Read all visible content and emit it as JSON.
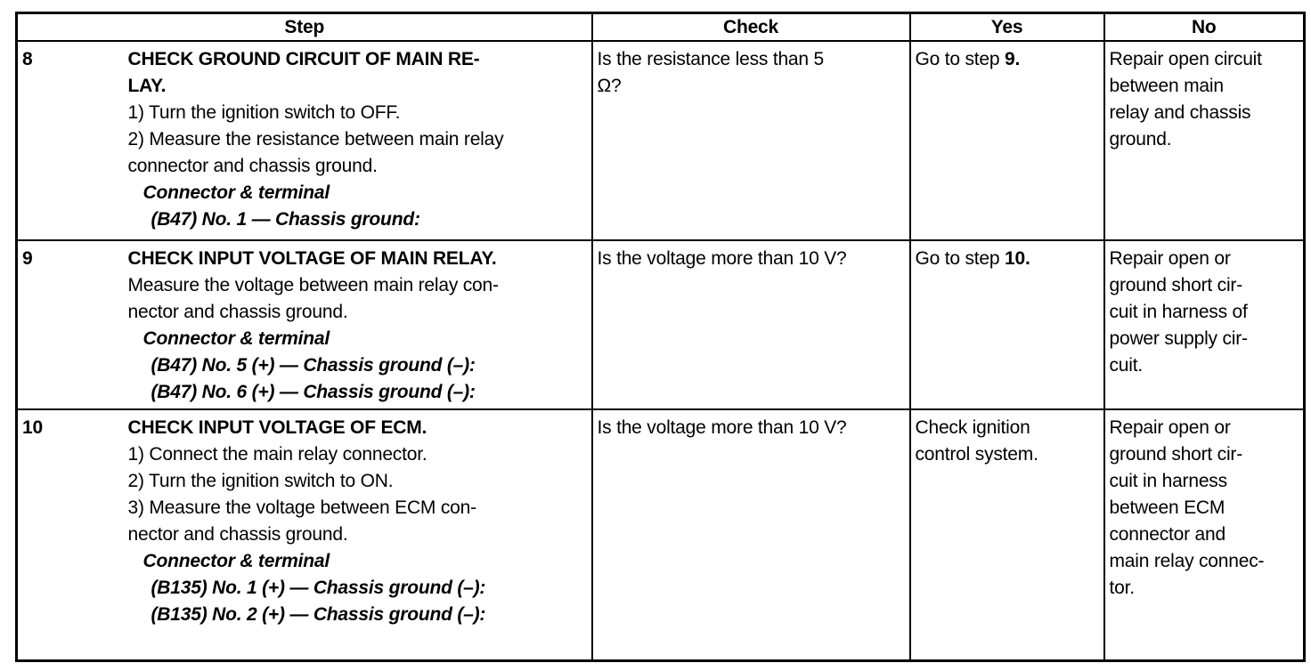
{
  "headers": {
    "step": "Step",
    "check": "Check",
    "yes": "Yes",
    "no": "No"
  },
  "rows": [
    {
      "num": "8",
      "step": [
        {
          "t": "CHECK GROUND CIRCUIT OF MAIN RE-",
          "s": "b"
        },
        {
          "t": "LAY.",
          "s": "b"
        },
        {
          "t": "1)  Turn the ignition switch to OFF.",
          "s": "n"
        },
        {
          "t": "2)  Measure the resistance between main relay",
          "s": "n"
        },
        {
          "t": "connector and chassis ground.",
          "s": "n"
        },
        {
          "t": "Connector & terminal",
          "s": "i1"
        },
        {
          "t": "(B47) No. 1 — Chassis ground:",
          "s": "i2"
        }
      ],
      "check": [
        "Is the resistance less than 5",
        "Ω?"
      ],
      "yes": {
        "prefix": "Go to step ",
        "bold": "9."
      },
      "no": [
        "Repair open circuit",
        "between main",
        "relay and chassis",
        "ground."
      ],
      "height": 224
    },
    {
      "num": "9",
      "step": [
        {
          "t": "CHECK INPUT VOLTAGE OF MAIN RELAY.",
          "s": "b"
        },
        {
          "t": "Measure the voltage between main relay con-",
          "s": "n"
        },
        {
          "t": "nector and chassis ground.",
          "s": "n"
        },
        {
          "t": "Connector & terminal",
          "s": "i1"
        },
        {
          "t": "(B47) No. 5 (+) — Chassis ground (–):",
          "s": "i2"
        },
        {
          "t": "(B47) No. 6 (+) — Chassis ground (–):",
          "s": "i2"
        }
      ],
      "check": [
        "Is the voltage more than 10 V?"
      ],
      "yes": {
        "prefix": "Go to step ",
        "bold": "10."
      },
      "no": [
        "Repair open or",
        "ground short cir-",
        "cuit in harness of",
        "power supply cir-",
        "cuit."
      ],
      "height": 190
    },
    {
      "num": "10",
      "step": [
        {
          "t": "CHECK INPUT VOLTAGE OF ECM.",
          "s": "b"
        },
        {
          "t": "1)  Connect the main relay connector.",
          "s": "n"
        },
        {
          "t": "2)  Turn the ignition switch to ON.",
          "s": "n"
        },
        {
          "t": "3)  Measure the voltage between ECM con-",
          "s": "n"
        },
        {
          "t": "nector and chassis ground.",
          "s": "n"
        },
        {
          "t": "Connector & terminal",
          "s": "i1"
        },
        {
          "t": "(B135) No. 1 (+) — Chassis ground (–):",
          "s": "i2"
        },
        {
          "t": "(B135) No. 2 (+) — Chassis ground (–):",
          "s": "i2"
        }
      ],
      "check": [
        "Is the voltage more than 10 V?"
      ],
      "yes": {
        "lines": [
          "Check ignition",
          "control system."
        ]
      },
      "no": [
        "Repair open or",
        "ground short cir-",
        "cuit in harness",
        "between ECM",
        "connector and",
        "main relay connec-",
        "tor."
      ],
      "height": 282
    }
  ]
}
